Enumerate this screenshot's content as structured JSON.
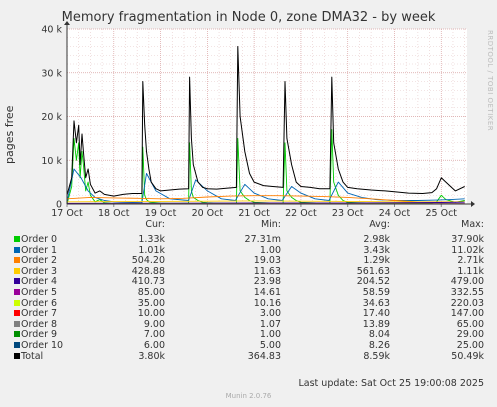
{
  "chart_data": {
    "type": "line",
    "title": "Memory fragmentation in Node 0, zone DMA32 - by week",
    "ylabel": "pages free",
    "ylim": [
      0,
      40000
    ],
    "yticks": [
      {
        "value": 0,
        "label": "0"
      },
      {
        "value": 10000,
        "label": "10 k"
      },
      {
        "value": 20000,
        "label": "20 k"
      },
      {
        "value": 30000,
        "label": "30 k"
      },
      {
        "value": 40000,
        "label": "40 k"
      }
    ],
    "xlim": [
      0,
      8.55
    ],
    "xticks": [
      {
        "value": 0,
        "label": "17 Oct"
      },
      {
        "value": 1,
        "label": "18 Oct"
      },
      {
        "value": 2,
        "label": "19 Oct"
      },
      {
        "value": 3,
        "label": "20 Oct"
      },
      {
        "value": 4,
        "label": "21 Oct"
      },
      {
        "value": 5,
        "label": "22 Oct"
      },
      {
        "value": 6,
        "label": "23 Oct"
      },
      {
        "value": 7,
        "label": "24 Oct"
      },
      {
        "value": 8,
        "label": "25 Oct"
      }
    ],
    "grid": true,
    "series": [
      {
        "name": "Order 0",
        "color": "#00cc00",
        "cur": "1.33k",
        "min": "27.31m",
        "avg": "2.98k",
        "max": "37.90k",
        "x": [
          0,
          0.1,
          0.15,
          0.2,
          0.25,
          0.28,
          0.32,
          0.35,
          0.4,
          0.45,
          0.5,
          0.6,
          0.7,
          0.8,
          0.9,
          1.0,
          1.2,
          1.4,
          1.6,
          1.62,
          1.66,
          1.7,
          1.75,
          1.8,
          1.9,
          2.0,
          2.2,
          2.4,
          2.6,
          2.62,
          2.66,
          2.7,
          2.8,
          2.9,
          3.0,
          3.2,
          3.4,
          3.62,
          3.65,
          3.7,
          3.8,
          3.9,
          4.0,
          4.2,
          4.4,
          4.62,
          4.66,
          4.7,
          4.8,
          4.9,
          5.0,
          5.2,
          5.4,
          5.62,
          5.66,
          5.7,
          5.8,
          5.9,
          6.0,
          6.2,
          6.5,
          6.8,
          7.0,
          7.3,
          7.6,
          7.8,
          7.9,
          8.0,
          8.1,
          8.3,
          8.5
        ],
        "y": [
          0,
          4000,
          15000,
          10000,
          14000,
          6000,
          12000,
          9000,
          3000,
          5000,
          2000,
          500,
          1000,
          300,
          200,
          100,
          80,
          80,
          100,
          13000,
          2000,
          1000,
          500,
          400,
          300,
          200,
          150,
          150,
          200,
          14000,
          3000,
          1500,
          800,
          400,
          300,
          200,
          150,
          200,
          15000,
          3000,
          1500,
          800,
          400,
          300,
          200,
          200,
          14000,
          3000,
          1500,
          800,
          400,
          300,
          200,
          200,
          17000,
          5000,
          2000,
          800,
          400,
          300,
          200,
          150,
          120,
          120,
          150,
          200,
          500,
          2000,
          1000,
          400,
          800
        ]
      },
      {
        "name": "Order 1",
        "color": "#0066b3",
        "cur": "1.01k",
        "min": "1.00",
        "avg": "3.43k",
        "max": "11.02k",
        "x": [
          0,
          0.15,
          0.3,
          0.45,
          0.6,
          0.8,
          1.0,
          1.3,
          1.6,
          1.7,
          1.9,
          2.2,
          2.6,
          2.75,
          3.0,
          3.3,
          3.6,
          3.8,
          4.0,
          4.3,
          4.6,
          4.8,
          5.0,
          5.3,
          5.6,
          5.8,
          6.0,
          6.3,
          6.6,
          7.0,
          7.5,
          7.9,
          8.2,
          8.5
        ],
        "y": [
          500,
          8000,
          6000,
          3000,
          1500,
          800,
          500,
          400,
          300,
          7000,
          3000,
          1200,
          800,
          5500,
          3000,
          1200,
          800,
          4500,
          2500,
          1200,
          800,
          4000,
          2500,
          1200,
          800,
          5000,
          2500,
          1500,
          1000,
          800,
          800,
          900,
          1000,
          1200
        ]
      },
      {
        "name": "Order 2",
        "color": "#ff8000",
        "cur": "504.20",
        "min": "19.03",
        "avg": "1.29k",
        "max": "2.71k",
        "x": [
          0,
          0.5,
          1.0,
          1.5,
          2.0,
          2.5,
          3.0,
          3.5,
          4.0,
          4.5,
          5.0,
          5.5,
          6.0,
          6.5,
          7.0,
          7.5,
          8.0,
          8.5
        ],
        "y": [
          1200,
          1500,
          1400,
          1300,
          1200,
          1300,
          1600,
          1800,
          1900,
          1900,
          1800,
          1700,
          1500,
          1200,
          800,
          500,
          500,
          500
        ]
      },
      {
        "name": "Order 3",
        "color": "#ffcc00",
        "cur": "428.88",
        "min": "11.63",
        "avg": "561.63",
        "max": "1.11k",
        "x": [
          0,
          1.0,
          2.0,
          3.0,
          4.0,
          5.0,
          6.0,
          7.0,
          8.0,
          8.5
        ],
        "y": [
          500,
          550,
          600,
          650,
          700,
          650,
          600,
          500,
          450,
          430
        ]
      },
      {
        "name": "Order 4",
        "color": "#330099",
        "cur": "410.73",
        "min": "23.98",
        "avg": "204.52",
        "max": "479.00",
        "x": [
          0,
          2.0,
          4.0,
          6.0,
          8.0,
          8.5
        ],
        "y": [
          150,
          180,
          220,
          220,
          350,
          410
        ]
      },
      {
        "name": "Order 5",
        "color": "#990099",
        "cur": "85.00",
        "min": "14.61",
        "avg": "58.59",
        "max": "332.55",
        "x": [
          0,
          4.0,
          8.5
        ],
        "y": [
          50,
          60,
          85
        ]
      },
      {
        "name": "Order 6",
        "color": "#ccff00",
        "cur": "35.00",
        "min": "10.16",
        "avg": "34.63",
        "max": "220.03",
        "x": [
          0,
          4.0,
          8.5
        ],
        "y": [
          30,
          35,
          35
        ]
      },
      {
        "name": "Order 7",
        "color": "#ff0000",
        "cur": "10.00",
        "min": "3.00",
        "avg": "17.40",
        "max": "147.00",
        "x": [
          0,
          4.0,
          8.5
        ],
        "y": [
          15,
          18,
          10
        ]
      },
      {
        "name": "Order 8",
        "color": "#808080",
        "cur": "9.00",
        "min": "1.07",
        "avg": "13.89",
        "max": "65.00",
        "x": [
          0,
          4.0,
          8.5
        ],
        "y": [
          12,
          14,
          9
        ]
      },
      {
        "name": "Order 9",
        "color": "#008f00",
        "cur": "7.00",
        "min": "1.00",
        "avg": "8.04",
        "max": "29.00",
        "x": [
          0,
          4.0,
          8.5
        ],
        "y": [
          8,
          8,
          7
        ]
      },
      {
        "name": "Order 10",
        "color": "#00487d",
        "cur": "6.00",
        "min": "5.00",
        "avg": "8.26",
        "max": "25.00",
        "x": [
          0,
          4.0,
          8.5
        ],
        "y": [
          8,
          8,
          6
        ]
      },
      {
        "name": "Total",
        "color": "#000000",
        "cur": "3.80k",
        "min": "364.83",
        "avg": "8.59k",
        "max": "50.49k",
        "x": [
          0,
          0.1,
          0.15,
          0.2,
          0.25,
          0.28,
          0.32,
          0.35,
          0.4,
          0.45,
          0.5,
          0.6,
          0.7,
          0.8,
          0.9,
          1.0,
          1.2,
          1.4,
          1.6,
          1.62,
          1.66,
          1.7,
          1.75,
          1.8,
          1.9,
          2.0,
          2.2,
          2.4,
          2.6,
          2.62,
          2.66,
          2.7,
          2.8,
          2.9,
          3.0,
          3.2,
          3.4,
          3.62,
          3.65,
          3.7,
          3.8,
          3.9,
          4.0,
          4.2,
          4.4,
          4.62,
          4.66,
          4.7,
          4.8,
          4.9,
          5.0,
          5.2,
          5.4,
          5.62,
          5.66,
          5.7,
          5.8,
          5.9,
          6.0,
          6.2,
          6.5,
          6.8,
          7.0,
          7.3,
          7.6,
          7.8,
          7.9,
          8.0,
          8.1,
          8.3,
          8.5
        ],
        "y": [
          2000,
          6000,
          19000,
          14000,
          18000,
          9000,
          16000,
          12000,
          6000,
          8000,
          4500,
          2500,
          3000,
          2200,
          2000,
          1800,
          2200,
          2400,
          2400,
          28000,
          18000,
          12000,
          8000,
          5000,
          3500,
          3000,
          3200,
          3400,
          3500,
          29000,
          15000,
          9000,
          5000,
          3800,
          3500,
          3400,
          3600,
          3800,
          36000,
          20000,
          12000,
          7000,
          5000,
          4200,
          4000,
          3800,
          28000,
          15000,
          9000,
          5000,
          4000,
          3800,
          3500,
          3500,
          29000,
          14000,
          8000,
          5000,
          3800,
          3500,
          3200,
          3000,
          2800,
          2500,
          2400,
          2600,
          3500,
          6000,
          5000,
          3000,
          4000
        ]
      }
    ]
  },
  "legend": {
    "headers": {
      "cur": "Cur:",
      "min": "Min:",
      "avg": "Avg:",
      "max": "Max:"
    },
    "last_update": "Last update: Sat Oct 25 19:00:08 2025"
  },
  "watermark": "RRDTOOL / TOBI OETIKER",
  "footer": "Munin 2.0.76"
}
